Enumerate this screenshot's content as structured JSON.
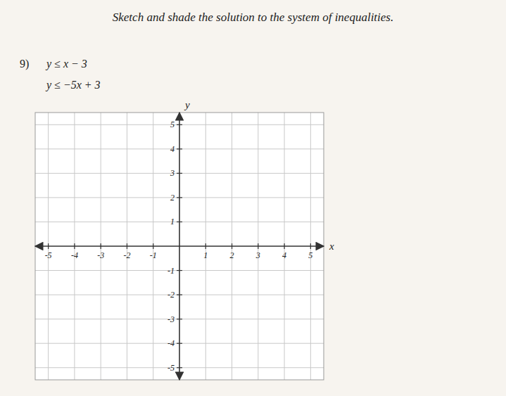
{
  "chart_data": {
    "type": "coordinate_plane",
    "title": "Sketch and shade the solution to the system of inequalities.",
    "annotations": [
      "9)",
      "y ≤ x − 3",
      "y ≤ −5x + 3"
    ],
    "x_label": "x",
    "y_label": "y",
    "xlim": [
      -5.5,
      5.5
    ],
    "ylim": [
      -5.5,
      5.5
    ],
    "xticks": [
      -5,
      -4,
      -3,
      -2,
      -1,
      1,
      2,
      3,
      4,
      5
    ],
    "yticks": [
      -5,
      -4,
      -3,
      -2,
      -1,
      1,
      2,
      3,
      4,
      5
    ],
    "grid": true
  }
}
